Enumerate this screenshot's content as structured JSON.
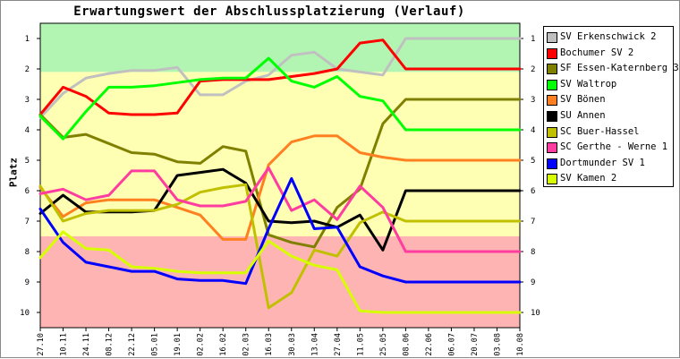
{
  "chart_data": {
    "type": "line",
    "title": "Erwartungswert der Abschlussplatzierung (Verlauf)",
    "ylabel": "Platz",
    "xlabel": "",
    "ylim": [
      10.5,
      0.5
    ],
    "y_inverted": true,
    "grid": false,
    "legend": "right",
    "yticks": [
      1,
      2,
      3,
      4,
      5,
      6,
      7,
      8,
      9,
      10
    ],
    "x": [
      "27.10",
      "10.11",
      "24.11",
      "08.12",
      "22.12",
      "05.01",
      "19.01",
      "02.02",
      "16.02",
      "02.03",
      "16.03",
      "30.03",
      "13.04",
      "27.04",
      "11.05",
      "25.05",
      "08.06",
      "22.06",
      "06.07",
      "20.07",
      "03.08",
      "10.08"
    ],
    "background_bands": [
      {
        "from": 0.5,
        "to": 2.1,
        "color": "#b2f5b2"
      },
      {
        "from": 2.1,
        "to": 7.5,
        "color": "#ffffb4"
      },
      {
        "from": 7.5,
        "to": 10.5,
        "color": "#ffb4b4"
      }
    ],
    "series": [
      {
        "name": "SV Erkenschwick 2",
        "color": "#c0c0c0",
        "values": [
          3.6,
          2.8,
          2.3,
          2.15,
          2.05,
          2.05,
          1.95,
          2.85,
          2.85,
          2.4,
          2.2,
          1.55,
          1.45,
          2.0,
          2.1,
          2.2,
          1.0,
          1.0,
          1.0,
          1.0,
          1.0,
          1.0
        ]
      },
      {
        "name": "Bochumer SV 2",
        "color": "#ff0000",
        "values": [
          3.5,
          2.6,
          2.9,
          3.45,
          3.5,
          3.5,
          3.45,
          2.4,
          2.35,
          2.35,
          2.35,
          2.25,
          2.15,
          2.0,
          1.15,
          1.05,
          2.0,
          2.0,
          2.0,
          2.0,
          2.0,
          2.0
        ]
      },
      {
        "name": "SF Essen-Katernberg 3",
        "color": "#808000",
        "values": [
          3.5,
          4.25,
          4.15,
          4.45,
          4.75,
          4.8,
          5.05,
          5.1,
          4.55,
          4.7,
          7.45,
          7.7,
          7.85,
          6.55,
          5.95,
          3.8,
          3.0,
          3.0,
          3.0,
          3.0,
          3.0,
          3.0
        ]
      },
      {
        "name": "SV Waltrop",
        "color": "#00ff00",
        "values": [
          3.55,
          4.3,
          3.4,
          2.6,
          2.6,
          2.55,
          2.45,
          2.35,
          2.3,
          2.3,
          1.65,
          2.4,
          2.6,
          2.25,
          2.9,
          3.05,
          4.0,
          4.0,
          4.0,
          4.0,
          4.0,
          4.0
        ]
      },
      {
        "name": "SV Bönen",
        "color": "#ff8020",
        "values": [
          5.9,
          6.85,
          6.4,
          6.3,
          6.3,
          6.3,
          6.55,
          6.8,
          7.6,
          7.6,
          5.15,
          4.4,
          4.2,
          4.2,
          4.75,
          4.9,
          5.0,
          5.0,
          5.0,
          5.0,
          5.0,
          5.0
        ]
      },
      {
        "name": "SU Annen",
        "color": "#000000",
        "values": [
          6.75,
          6.15,
          6.7,
          6.7,
          6.7,
          6.65,
          5.5,
          5.4,
          5.3,
          5.75,
          7.0,
          7.05,
          7.0,
          7.2,
          6.8,
          7.95,
          6.0,
          6.0,
          6.0,
          6.0,
          6.0,
          6.0
        ]
      },
      {
        "name": "SC Buer-Hassel",
        "color": "#c0c000",
        "values": [
          5.85,
          7.0,
          6.75,
          6.65,
          6.65,
          6.65,
          6.45,
          6.05,
          5.9,
          5.8,
          9.85,
          9.35,
          7.95,
          8.15,
          7.05,
          6.7,
          7.0,
          7.0,
          7.0,
          7.0,
          7.0,
          7.0
        ]
      },
      {
        "name": "SC Gerthe - Werne 1",
        "color": "#ff3ca0",
        "values": [
          6.1,
          5.95,
          6.3,
          6.15,
          5.35,
          5.35,
          6.3,
          6.5,
          6.5,
          6.35,
          5.25,
          6.65,
          6.3,
          6.95,
          5.85,
          6.55,
          8.0,
          8.0,
          8.0,
          8.0,
          8.0,
          8.0
        ]
      },
      {
        "name": "Dortmunder SV 1",
        "color": "#0000ff",
        "values": [
          6.6,
          7.7,
          8.35,
          8.5,
          8.65,
          8.65,
          8.9,
          8.95,
          8.95,
          9.05,
          7.25,
          5.6,
          7.25,
          7.2,
          8.5,
          8.8,
          9.0,
          9.0,
          9.0,
          9.0,
          9.0,
          9.0
        ]
      },
      {
        "name": "SV Kamen 2",
        "color": "#d8ff00",
        "values": [
          8.2,
          7.35,
          7.9,
          7.95,
          8.5,
          8.55,
          8.65,
          8.7,
          8.7,
          8.7,
          7.65,
          8.15,
          8.45,
          8.6,
          9.95,
          10.0,
          10.0,
          10.0,
          10.0,
          10.0,
          10.0,
          10.0
        ]
      }
    ]
  }
}
